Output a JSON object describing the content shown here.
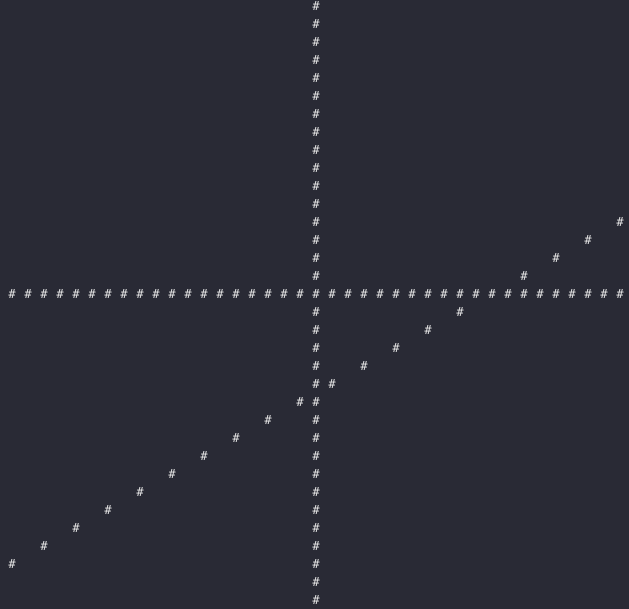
{
  "terminal": {
    "glyph": "#",
    "grid_columns": 40,
    "grid_rows": 34,
    "cells": [
      [
        19,
        0
      ],
      [
        19,
        1
      ],
      [
        19,
        2
      ],
      [
        19,
        3
      ],
      [
        19,
        4
      ],
      [
        19,
        5
      ],
      [
        19,
        6
      ],
      [
        19,
        7
      ],
      [
        19,
        8
      ],
      [
        19,
        9
      ],
      [
        19,
        10
      ],
      [
        19,
        11
      ],
      [
        19,
        12
      ],
      [
        19,
        13
      ],
      [
        19,
        14
      ],
      [
        19,
        15
      ],
      [
        0,
        16
      ],
      [
        1,
        16
      ],
      [
        2,
        16
      ],
      [
        3,
        16
      ],
      [
        4,
        16
      ],
      [
        5,
        16
      ],
      [
        6,
        16
      ],
      [
        7,
        16
      ],
      [
        8,
        16
      ],
      [
        9,
        16
      ],
      [
        10,
        16
      ],
      [
        11,
        16
      ],
      [
        12,
        16
      ],
      [
        13,
        16
      ],
      [
        14,
        16
      ],
      [
        15,
        16
      ],
      [
        16,
        16
      ],
      [
        17,
        16
      ],
      [
        18,
        16
      ],
      [
        19,
        16
      ],
      [
        20,
        16
      ],
      [
        21,
        16
      ],
      [
        22,
        16
      ],
      [
        23,
        16
      ],
      [
        24,
        16
      ],
      [
        25,
        16
      ],
      [
        26,
        16
      ],
      [
        27,
        16
      ],
      [
        28,
        16
      ],
      [
        29,
        16
      ],
      [
        30,
        16
      ],
      [
        31,
        16
      ],
      [
        32,
        16
      ],
      [
        33,
        16
      ],
      [
        34,
        16
      ],
      [
        35,
        16
      ],
      [
        36,
        16
      ],
      [
        37,
        16
      ],
      [
        38,
        16
      ],
      [
        19,
        17
      ],
      [
        19,
        18
      ],
      [
        19,
        19
      ],
      [
        19,
        20
      ],
      [
        19,
        21
      ],
      [
        19,
        22
      ],
      [
        19,
        23
      ],
      [
        19,
        24
      ],
      [
        19,
        25
      ],
      [
        19,
        26
      ],
      [
        19,
        27
      ],
      [
        19,
        28
      ],
      [
        19,
        29
      ],
      [
        19,
        30
      ],
      [
        19,
        31
      ],
      [
        19,
        32
      ],
      [
        19,
        33
      ],
      [
        38,
        12
      ],
      [
        36,
        13
      ],
      [
        34,
        14
      ],
      [
        32,
        15
      ],
      [
        28,
        17
      ],
      [
        26,
        18
      ],
      [
        24,
        19
      ],
      [
        22,
        20
      ],
      [
        20,
        21
      ],
      [
        18,
        22
      ],
      [
        16,
        23
      ],
      [
        14,
        24
      ],
      [
        12,
        25
      ],
      [
        10,
        26
      ],
      [
        8,
        27
      ],
      [
        6,
        28
      ],
      [
        4,
        29
      ],
      [
        2,
        30
      ],
      [
        0,
        31
      ]
    ]
  }
}
